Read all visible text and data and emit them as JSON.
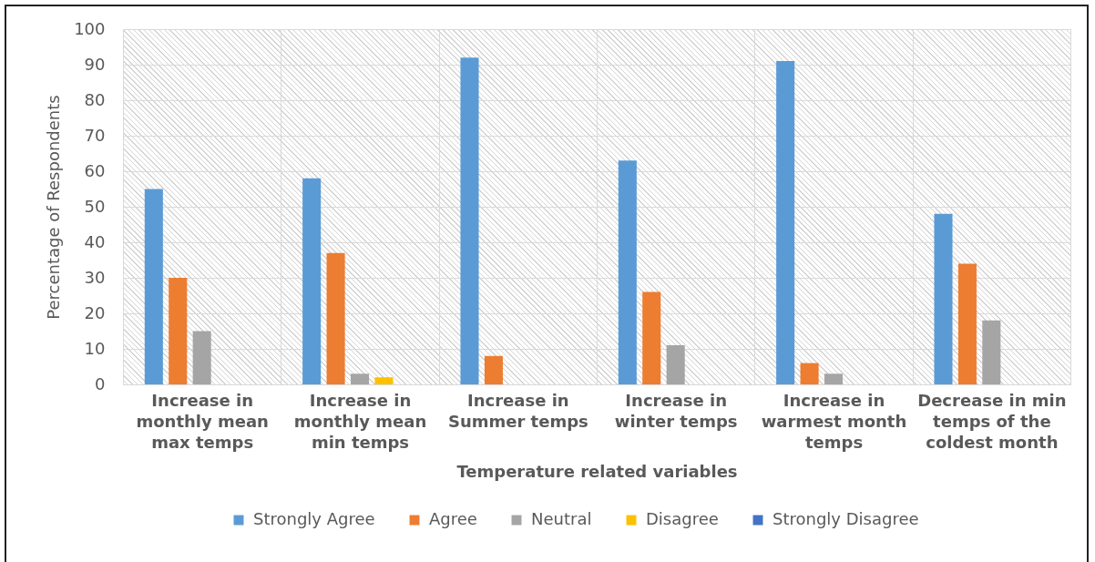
{
  "chart_data": {
    "type": "bar",
    "xlabel": "Temperature related variables",
    "ylabel": "Percentage of Respondents",
    "categories": [
      "Increase in monthly mean max temps",
      "Increase in monthly mean min temps",
      "Increase in Summer temps",
      "Increase in winter temps",
      "Increase in warmest month temps",
      "Decrease in min temps of the coldest month"
    ],
    "series": [
      {
        "name": "Strongly Agree",
        "color": "#5b9bd5",
        "values": [
          55,
          58,
          92,
          63,
          91,
          48
        ]
      },
      {
        "name": "Agree",
        "color": "#ed7d31",
        "values": [
          30,
          37,
          8,
          26,
          6,
          34
        ]
      },
      {
        "name": "Neutral",
        "color": "#a5a5a5",
        "values": [
          15,
          3,
          0,
          11,
          3,
          18
        ]
      },
      {
        "name": "Disagree",
        "color": "#ffc000",
        "values": [
          0,
          2,
          0,
          0,
          0,
          0
        ]
      },
      {
        "name": "Strongly Disagree",
        "color": "#4472c4",
        "values": [
          0,
          0,
          0,
          0,
          0,
          0
        ]
      }
    ],
    "ylim": [
      0,
      100
    ],
    "yticks": [
      0,
      10,
      20,
      30,
      40,
      50,
      60,
      70,
      80,
      90,
      100
    ],
    "grid": true,
    "legend": "bottom"
  }
}
